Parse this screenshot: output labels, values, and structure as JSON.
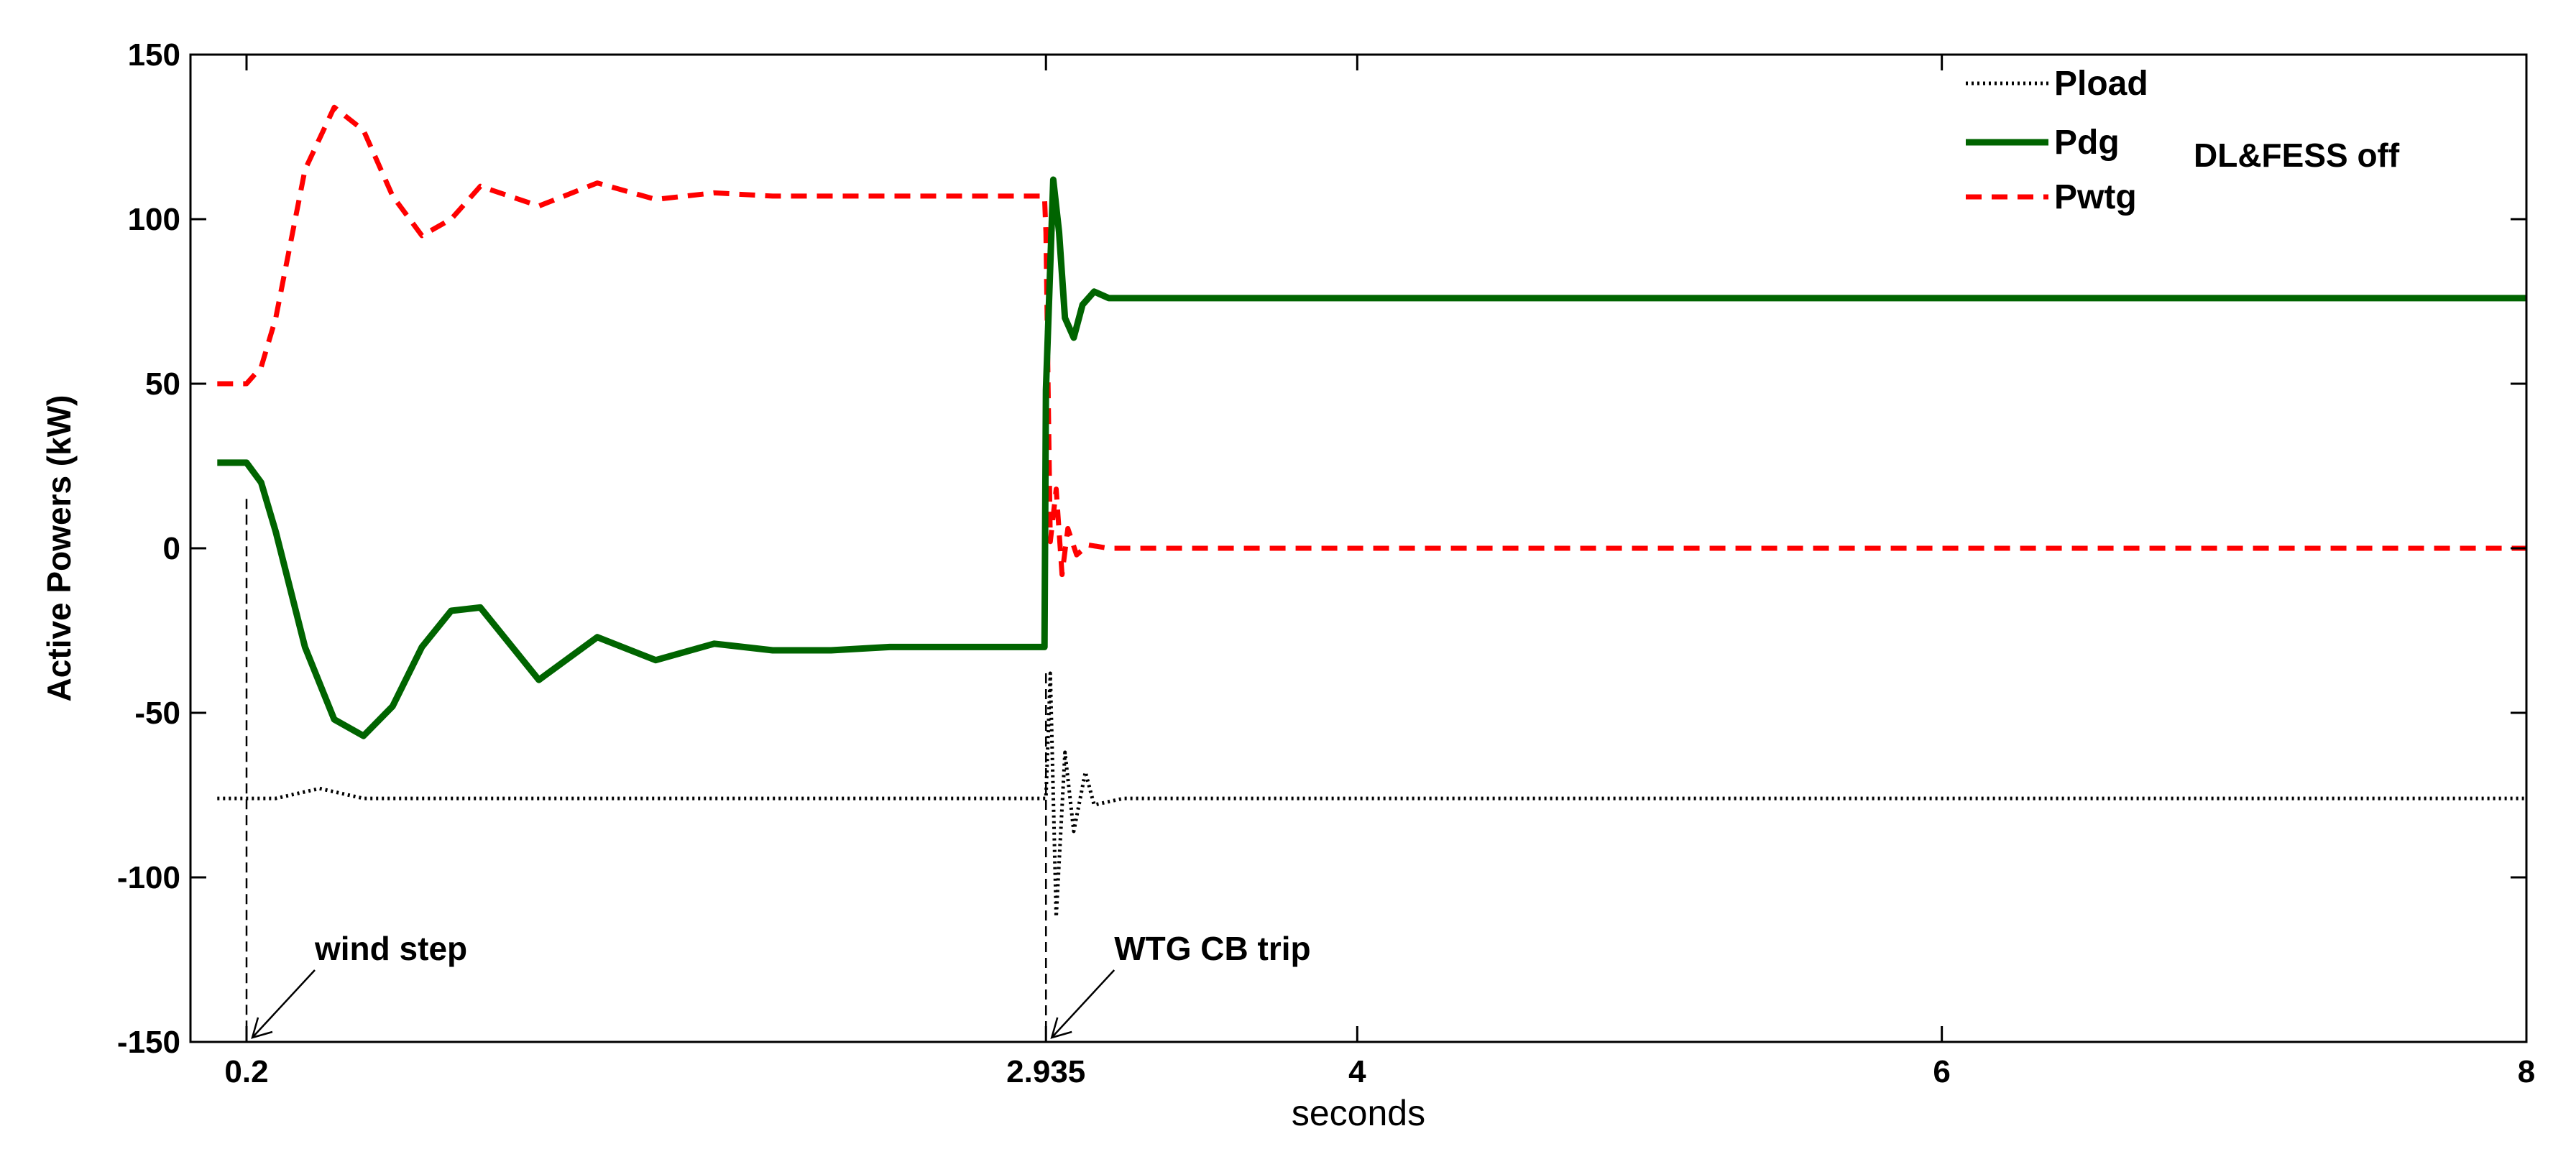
{
  "chart_data": {
    "type": "line",
    "title": "",
    "xlabel": "seconds",
    "ylabel": "Active Powers (kW)",
    "xlim": [
      0.1,
      8
    ],
    "ylim": [
      -150,
      150
    ],
    "x_ticks": [
      0.2,
      2.935,
      4,
      6,
      8
    ],
    "x_tick_labels": [
      "0.2",
      "2.935",
      "4",
      "6",
      "8"
    ],
    "y_ticks": [
      -150,
      -100,
      -50,
      0,
      50,
      100,
      150
    ],
    "y_tick_labels": [
      "-150",
      "-100",
      "-50",
      "0",
      "50",
      "100",
      "150"
    ],
    "grid": false,
    "legend_position": "top-right",
    "note": "DL&FESS off",
    "colors": {
      "Pload": "#000000",
      "Pdg": "#006400",
      "Pwtg": "#ff0000"
    },
    "series": [
      {
        "name": "Pload",
        "style": "dotted",
        "x": [
          0.1,
          0.2,
          0.3,
          0.45,
          0.6,
          0.8,
          1.0,
          1.5,
          2.0,
          2.5,
          2.935,
          2.95,
          2.97,
          3.0,
          3.03,
          3.07,
          3.1,
          3.2,
          4,
          6,
          8
        ],
        "y": [
          -76,
          -76,
          -76,
          -73,
          -76,
          -76,
          -76,
          -76,
          -76,
          -76,
          -76,
          -38,
          -112,
          -62,
          -86,
          -68,
          -78,
          -76,
          -76,
          -76,
          -76
        ]
      },
      {
        "name": "Pdg",
        "style": "solid",
        "x": [
          0.1,
          0.2,
          0.25,
          0.3,
          0.4,
          0.5,
          0.6,
          0.7,
          0.8,
          0.9,
          1.0,
          1.2,
          1.4,
          1.6,
          1.8,
          2.0,
          2.2,
          2.4,
          2.6,
          2.8,
          2.93,
          2.935,
          2.96,
          2.98,
          3.0,
          3.03,
          3.06,
          3.1,
          3.15,
          3.2,
          3.3,
          4,
          6,
          8
        ],
        "y": [
          26,
          26,
          20,
          5,
          -30,
          -52,
          -57,
          -48,
          -30,
          -19,
          -18,
          -40,
          -27,
          -34,
          -29,
          -31,
          -31,
          -30,
          -30,
          -30,
          -30,
          48,
          112,
          96,
          70,
          64,
          74,
          78,
          76,
          76,
          76,
          76,
          76,
          76
        ]
      },
      {
        "name": "Pwtg",
        "style": "dashed",
        "x": [
          0.1,
          0.2,
          0.25,
          0.3,
          0.4,
          0.5,
          0.6,
          0.7,
          0.8,
          0.9,
          1.0,
          1.2,
          1.4,
          1.6,
          1.8,
          2.0,
          2.2,
          2.4,
          2.6,
          2.8,
          2.93,
          2.935,
          2.95,
          2.97,
          2.99,
          3.01,
          3.04,
          3.08,
          3.15,
          4,
          6,
          8
        ],
        "y": [
          50,
          50,
          55,
          70,
          115,
          134,
          127,
          107,
          95,
          100,
          110,
          104,
          111,
          106,
          108,
          107,
          107,
          107,
          107,
          107,
          107,
          96,
          2,
          18,
          -8,
          6,
          -2,
          1,
          0,
          0,
          0,
          0
        ]
      }
    ],
    "annotations": [
      {
        "text": "wind step",
        "x": 0.2
      },
      {
        "text": "WTG CB trip",
        "x": 2.935
      }
    ]
  }
}
